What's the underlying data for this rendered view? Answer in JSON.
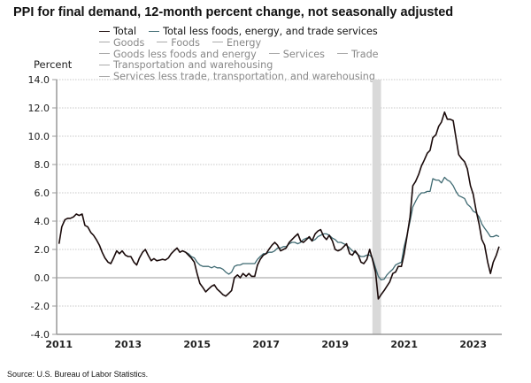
{
  "chart_data": {
    "type": "line",
    "title": "PPI for final demand, 12-month percent change, not seasonally adjusted",
    "ylabel": "Percent",
    "xlabel": "",
    "ylim": [
      -4.0,
      14.0
    ],
    "xlim": [
      2011.0,
      2023.9
    ],
    "y_ticks": [
      "14.0",
      "12.0",
      "10.0",
      "8.0",
      "6.0",
      "4.0",
      "2.0",
      "0.0",
      "-2.0",
      "-4.0"
    ],
    "y_tick_values": [
      14,
      12,
      10,
      8,
      6,
      4,
      2,
      0,
      -2,
      -4
    ],
    "x_ticks": [
      "2011",
      "2013",
      "2015",
      "2017",
      "2019",
      "2021",
      "2023"
    ],
    "x_tick_values": [
      2011,
      2013,
      2015,
      2017,
      2019,
      2021,
      2023
    ],
    "grid": true,
    "recession": {
      "start": 2020.08,
      "end": 2020.33
    },
    "legend": {
      "placement": "top",
      "rows": [
        [
          {
            "label": "Total",
            "active": true,
            "color": "#1a0a0a"
          },
          {
            "label": "Total less foods, energy, and trade services",
            "active": true,
            "color": "#3f6a72"
          }
        ],
        [
          {
            "label": "Goods",
            "active": false,
            "color": "#aaaaaa"
          },
          {
            "label": "Foods",
            "active": false,
            "color": "#aaaaaa"
          },
          {
            "label": "Energy",
            "active": false,
            "color": "#aaaaaa"
          }
        ],
        [
          {
            "label": "Goods less foods and energy",
            "active": false,
            "color": "#aaaaaa"
          },
          {
            "label": "Services",
            "active": false,
            "color": "#aaaaaa"
          },
          {
            "label": "Trade",
            "active": false,
            "color": "#aaaaaa"
          }
        ],
        [
          {
            "label": "Transportation and warehousing",
            "active": false,
            "color": "#aaaaaa"
          }
        ],
        [
          {
            "label": "Services less trade, transportation, and warehousing",
            "active": false,
            "color": "#aaaaaa"
          }
        ]
      ]
    },
    "series": [
      {
        "name": "Total",
        "color": "#1a0a0a",
        "points": [
          [
            2011.0,
            2.4
          ],
          [
            2011.08,
            3.6
          ],
          [
            2011.17,
            4.1
          ],
          [
            2011.25,
            4.2
          ],
          [
            2011.33,
            4.2
          ],
          [
            2011.42,
            4.3
          ],
          [
            2011.5,
            4.5
          ],
          [
            2011.58,
            4.4
          ],
          [
            2011.67,
            4.5
          ],
          [
            2011.75,
            3.7
          ],
          [
            2011.83,
            3.6
          ],
          [
            2011.92,
            3.2
          ],
          [
            2012.0,
            3.0
          ],
          [
            2012.08,
            2.7
          ],
          [
            2012.17,
            2.3
          ],
          [
            2012.25,
            1.8
          ],
          [
            2012.33,
            1.4
          ],
          [
            2012.42,
            1.1
          ],
          [
            2012.5,
            1.0
          ],
          [
            2012.58,
            1.4
          ],
          [
            2012.67,
            1.9
          ],
          [
            2012.75,
            1.7
          ],
          [
            2012.83,
            1.9
          ],
          [
            2012.92,
            1.6
          ],
          [
            2013.0,
            1.5
          ],
          [
            2013.08,
            1.5
          ],
          [
            2013.17,
            1.1
          ],
          [
            2013.25,
            0.9
          ],
          [
            2013.33,
            1.4
          ],
          [
            2013.42,
            1.8
          ],
          [
            2013.5,
            2.0
          ],
          [
            2013.58,
            1.6
          ],
          [
            2013.67,
            1.2
          ],
          [
            2013.75,
            1.35
          ],
          [
            2013.83,
            1.2
          ],
          [
            2013.92,
            1.25
          ],
          [
            2014.0,
            1.3
          ],
          [
            2014.08,
            1.25
          ],
          [
            2014.17,
            1.4
          ],
          [
            2014.25,
            1.7
          ],
          [
            2014.33,
            1.9
          ],
          [
            2014.42,
            2.1
          ],
          [
            2014.5,
            1.8
          ],
          [
            2014.58,
            1.9
          ],
          [
            2014.67,
            1.8
          ],
          [
            2014.75,
            1.6
          ],
          [
            2014.83,
            1.4
          ],
          [
            2014.92,
            1.1
          ],
          [
            2015.0,
            0.3
          ],
          [
            2015.08,
            -0.4
          ],
          [
            2015.17,
            -0.7
          ],
          [
            2015.25,
            -1.0
          ],
          [
            2015.33,
            -0.8
          ],
          [
            2015.42,
            -0.6
          ],
          [
            2015.5,
            -0.5
          ],
          [
            2015.58,
            -0.8
          ],
          [
            2015.67,
            -1.0
          ],
          [
            2015.75,
            -1.2
          ],
          [
            2015.83,
            -1.3
          ],
          [
            2015.92,
            -1.1
          ],
          [
            2016.0,
            -0.9
          ],
          [
            2016.08,
            0.0
          ],
          [
            2016.17,
            0.2
          ],
          [
            2016.25,
            0.0
          ],
          [
            2016.33,
            0.3
          ],
          [
            2016.42,
            0.1
          ],
          [
            2016.5,
            0.3
          ],
          [
            2016.58,
            0.1
          ],
          [
            2016.67,
            0.1
          ],
          [
            2016.75,
            0.9
          ],
          [
            2016.83,
            1.3
          ],
          [
            2016.92,
            1.6
          ],
          [
            2017.0,
            1.7
          ],
          [
            2017.08,
            2.0
          ],
          [
            2017.17,
            2.3
          ],
          [
            2017.25,
            2.5
          ],
          [
            2017.33,
            2.3
          ],
          [
            2017.42,
            1.9
          ],
          [
            2017.5,
            2.0
          ],
          [
            2017.58,
            2.1
          ],
          [
            2017.67,
            2.5
          ],
          [
            2017.75,
            2.7
          ],
          [
            2017.83,
            2.9
          ],
          [
            2017.92,
            3.1
          ],
          [
            2018.0,
            2.6
          ],
          [
            2018.08,
            2.5
          ],
          [
            2018.17,
            2.7
          ],
          [
            2018.25,
            2.9
          ],
          [
            2018.33,
            2.6
          ],
          [
            2018.42,
            3.1
          ],
          [
            2018.5,
            3.3
          ],
          [
            2018.58,
            3.4
          ],
          [
            2018.67,
            2.9
          ],
          [
            2018.75,
            2.7
          ],
          [
            2018.83,
            3.0
          ],
          [
            2018.92,
            2.6
          ],
          [
            2019.0,
            2.0
          ],
          [
            2019.08,
            1.9
          ],
          [
            2019.17,
            2.0
          ],
          [
            2019.25,
            2.2
          ],
          [
            2019.33,
            2.4
          ],
          [
            2019.42,
            1.7
          ],
          [
            2019.5,
            1.6
          ],
          [
            2019.58,
            1.9
          ],
          [
            2019.67,
            1.6
          ],
          [
            2019.75,
            1.1
          ],
          [
            2019.83,
            1.0
          ],
          [
            2019.92,
            1.3
          ],
          [
            2020.0,
            2.0
          ],
          [
            2020.08,
            1.3
          ],
          [
            2020.17,
            0.4
          ],
          [
            2020.25,
            -1.5
          ],
          [
            2020.33,
            -1.2
          ],
          [
            2020.42,
            -0.9
          ],
          [
            2020.5,
            -0.6
          ],
          [
            2020.58,
            -0.3
          ],
          [
            2020.67,
            0.3
          ],
          [
            2020.75,
            0.4
          ],
          [
            2020.83,
            0.8
          ],
          [
            2020.92,
            0.8
          ],
          [
            2021.0,
            1.7
          ],
          [
            2021.08,
            2.9
          ],
          [
            2021.17,
            4.3
          ],
          [
            2021.25,
            6.5
          ],
          [
            2021.33,
            6.8
          ],
          [
            2021.42,
            7.3
          ],
          [
            2021.5,
            7.9
          ],
          [
            2021.58,
            8.3
          ],
          [
            2021.67,
            8.8
          ],
          [
            2021.75,
            9.0
          ],
          [
            2021.83,
            9.9
          ],
          [
            2021.92,
            10.1
          ],
          [
            2022.0,
            10.7
          ],
          [
            2022.08,
            11.0
          ],
          [
            2022.17,
            11.7
          ],
          [
            2022.25,
            11.2
          ],
          [
            2022.33,
            11.2
          ],
          [
            2022.42,
            11.1
          ],
          [
            2022.5,
            9.9
          ],
          [
            2022.58,
            8.7
          ],
          [
            2022.67,
            8.4
          ],
          [
            2022.75,
            8.2
          ],
          [
            2022.83,
            7.7
          ],
          [
            2022.92,
            6.5
          ],
          [
            2023.0,
            5.9
          ],
          [
            2023.08,
            4.8
          ],
          [
            2023.17,
            3.8
          ],
          [
            2023.25,
            2.7
          ],
          [
            2023.33,
            2.3
          ],
          [
            2023.42,
            1.1
          ],
          [
            2023.5,
            0.3
          ],
          [
            2023.58,
            1.1
          ],
          [
            2023.67,
            1.6
          ],
          [
            2023.75,
            2.2
          ]
        ]
      },
      {
        "name": "Total less foods, energy, and trade services",
        "color": "#3f6a72",
        "points": [
          [
            2014.58,
            1.9
          ],
          [
            2014.67,
            1.8
          ],
          [
            2014.75,
            1.7
          ],
          [
            2014.83,
            1.5
          ],
          [
            2014.92,
            1.4
          ],
          [
            2015.0,
            1.1
          ],
          [
            2015.08,
            0.9
          ],
          [
            2015.17,
            0.8
          ],
          [
            2015.25,
            0.8
          ],
          [
            2015.33,
            0.8
          ],
          [
            2015.42,
            0.7
          ],
          [
            2015.5,
            0.8
          ],
          [
            2015.58,
            0.7
          ],
          [
            2015.67,
            0.7
          ],
          [
            2015.75,
            0.6
          ],
          [
            2015.83,
            0.4
          ],
          [
            2015.92,
            0.25
          ],
          [
            2016.0,
            0.4
          ],
          [
            2016.08,
            0.8
          ],
          [
            2016.17,
            0.9
          ],
          [
            2016.25,
            0.9
          ],
          [
            2016.33,
            1.0
          ],
          [
            2016.42,
            1.0
          ],
          [
            2016.5,
            1.0
          ],
          [
            2016.58,
            1.0
          ],
          [
            2016.67,
            1.0
          ],
          [
            2016.75,
            1.3
          ],
          [
            2016.83,
            1.5
          ],
          [
            2016.92,
            1.7
          ],
          [
            2017.0,
            1.7
          ],
          [
            2017.08,
            1.8
          ],
          [
            2017.17,
            1.8
          ],
          [
            2017.25,
            1.9
          ],
          [
            2017.33,
            2.1
          ],
          [
            2017.42,
            2.1
          ],
          [
            2017.5,
            2.2
          ],
          [
            2017.58,
            2.2
          ],
          [
            2017.67,
            2.4
          ],
          [
            2017.75,
            2.5
          ],
          [
            2017.83,
            2.5
          ],
          [
            2017.92,
            2.4
          ],
          [
            2018.0,
            2.5
          ],
          [
            2018.08,
            2.7
          ],
          [
            2018.17,
            2.8
          ],
          [
            2018.25,
            2.8
          ],
          [
            2018.33,
            2.6
          ],
          [
            2018.42,
            2.7
          ],
          [
            2018.5,
            2.9
          ],
          [
            2018.58,
            3.0
          ],
          [
            2018.67,
            3.1
          ],
          [
            2018.75,
            3.1
          ],
          [
            2018.83,
            3.0
          ],
          [
            2018.92,
            2.8
          ],
          [
            2019.0,
            2.7
          ],
          [
            2019.08,
            2.5
          ],
          [
            2019.17,
            2.5
          ],
          [
            2019.25,
            2.4
          ],
          [
            2019.33,
            2.3
          ],
          [
            2019.42,
            2.1
          ],
          [
            2019.5,
            1.9
          ],
          [
            2019.58,
            1.8
          ],
          [
            2019.67,
            1.6
          ],
          [
            2019.75,
            1.5
          ],
          [
            2019.83,
            1.5
          ],
          [
            2019.92,
            1.6
          ],
          [
            2020.0,
            1.6
          ],
          [
            2020.08,
            1.4
          ],
          [
            2020.17,
            0.7
          ],
          [
            2020.25,
            0.1
          ],
          [
            2020.33,
            -0.15
          ],
          [
            2020.42,
            -0.1
          ],
          [
            2020.5,
            0.2
          ],
          [
            2020.58,
            0.4
          ],
          [
            2020.67,
            0.6
          ],
          [
            2020.75,
            0.9
          ],
          [
            2020.83,
            1.0
          ],
          [
            2020.92,
            1.1
          ],
          [
            2021.0,
            2.2
          ],
          [
            2021.08,
            3.0
          ],
          [
            2021.17,
            4.0
          ],
          [
            2021.25,
            5.0
          ],
          [
            2021.33,
            5.4
          ],
          [
            2021.42,
            5.8
          ],
          [
            2021.5,
            6.0
          ],
          [
            2021.58,
            6.0
          ],
          [
            2021.67,
            6.1
          ],
          [
            2021.75,
            6.1
          ],
          [
            2021.83,
            7.0
          ],
          [
            2021.92,
            6.9
          ],
          [
            2022.0,
            6.9
          ],
          [
            2022.08,
            6.7
          ],
          [
            2022.17,
            7.1
          ],
          [
            2022.25,
            6.9
          ],
          [
            2022.33,
            6.8
          ],
          [
            2022.42,
            6.5
          ],
          [
            2022.5,
            6.1
          ],
          [
            2022.58,
            5.8
          ],
          [
            2022.67,
            5.7
          ],
          [
            2022.75,
            5.6
          ],
          [
            2022.83,
            5.2
          ],
          [
            2022.92,
            5.0
          ],
          [
            2023.0,
            4.7
          ],
          [
            2023.08,
            4.6
          ],
          [
            2023.17,
            4.3
          ],
          [
            2023.25,
            3.8
          ],
          [
            2023.33,
            3.5
          ],
          [
            2023.42,
            3.2
          ],
          [
            2023.5,
            2.9
          ],
          [
            2023.58,
            2.9
          ],
          [
            2023.67,
            3.0
          ],
          [
            2023.75,
            2.9
          ]
        ]
      }
    ]
  },
  "source": "Source: U.S. Bureau of Labor Statistics."
}
